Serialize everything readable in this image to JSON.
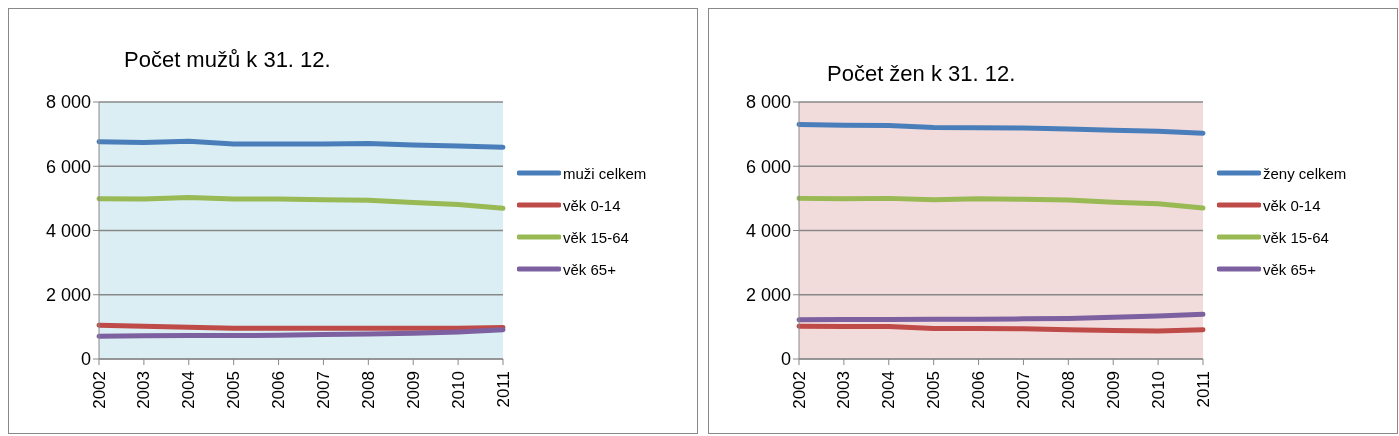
{
  "chart_data": [
    {
      "type": "line",
      "title": "Počet mužů k 31. 12.",
      "categories": [
        "2002",
        "2003",
        "2004",
        "2005",
        "2006",
        "2007",
        "2008",
        "2009",
        "2010",
        "2011"
      ],
      "series": [
        {
          "name": "muži celkem",
          "color": "#4a7ebb",
          "values": [
            6760,
            6740,
            6780,
            6690,
            6690,
            6690,
            6710,
            6660,
            6630,
            6590
          ]
        },
        {
          "name": "věk 0-14",
          "color": "#be4b48",
          "values": [
            1050,
            1020,
            990,
            960,
            960,
            960,
            960,
            960,
            960,
            980
          ]
        },
        {
          "name": "věk 15-64",
          "color": "#98b954",
          "values": [
            4990,
            4980,
            5030,
            4980,
            4980,
            4960,
            4940,
            4870,
            4810,
            4690
          ]
        },
        {
          "name": "věk 65+",
          "color": "#7d60a0",
          "values": [
            710,
            720,
            730,
            730,
            740,
            760,
            780,
            800,
            840,
            910
          ]
        }
      ],
      "ylim": [
        0,
        8000
      ],
      "yticks": [
        {
          "value": 0,
          "label": "0"
        },
        {
          "value": 2000,
          "label": "2 000"
        },
        {
          "value": 4000,
          "label": "4 000"
        },
        {
          "value": 6000,
          "label": "6 000"
        },
        {
          "value": 8000,
          "label": "8 000"
        }
      ],
      "grid": "y",
      "legend": "right",
      "marker": "none",
      "line_style": "solid"
    },
    {
      "type": "line",
      "title": "Počet žen k 31. 12.",
      "categories": [
        "2002",
        "2003",
        "2004",
        "2005",
        "2006",
        "2007",
        "2008",
        "2009",
        "2010",
        "2011"
      ],
      "series": [
        {
          "name": "ženy celkem",
          "color": "#4a7ebb",
          "values": [
            7300,
            7280,
            7270,
            7210,
            7200,
            7190,
            7160,
            7120,
            7090,
            7030
          ]
        },
        {
          "name": "věk 0-14",
          "color": "#be4b48",
          "values": [
            1020,
            1010,
            1010,
            950,
            950,
            940,
            910,
            890,
            870,
            910
          ]
        },
        {
          "name": "věk 15-64",
          "color": "#98b954",
          "values": [
            5000,
            4990,
            5000,
            4960,
            4990,
            4970,
            4950,
            4880,
            4830,
            4700
          ]
        },
        {
          "name": "věk 65+",
          "color": "#7d60a0",
          "values": [
            1220,
            1230,
            1230,
            1240,
            1240,
            1250,
            1260,
            1300,
            1340,
            1390
          ]
        }
      ],
      "ylim": [
        0,
        8000
      ],
      "yticks": [
        {
          "value": 0,
          "label": "0"
        },
        {
          "value": 2000,
          "label": "2 000"
        },
        {
          "value": 4000,
          "label": "4 000"
        },
        {
          "value": 6000,
          "label": "6 000"
        },
        {
          "value": 8000,
          "label": "8 000"
        }
      ],
      "grid": "y",
      "legend": "right",
      "marker": "none",
      "line_style": "solid"
    }
  ]
}
